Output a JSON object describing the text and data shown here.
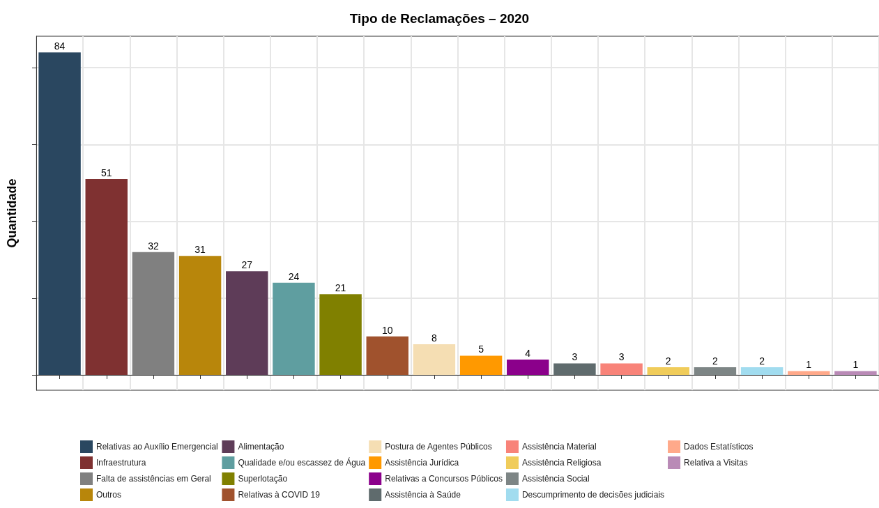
{
  "chart_data": {
    "type": "bar",
    "title": "Tipo de Reclamações – 2020",
    "ylabel": "Quantidade",
    "categories": [
      null,
      null,
      null,
      null,
      null,
      null,
      null,
      null,
      null,
      null,
      null,
      null,
      null,
      null,
      null,
      null,
      null,
      null
    ],
    "stacked": true,
    "series": [
      {
        "name": "Relativas ao Auxílio Emergencial",
        "color": "#2a4760",
        "values": [
          84,
          null,
          null,
          null,
          null,
          null,
          null,
          null,
          null,
          null,
          null,
          null,
          null,
          null,
          null,
          null,
          null,
          null
        ]
      },
      {
        "name": "Infraestrutura",
        "color": "#7f3131",
        "values": [
          null,
          51,
          null,
          null,
          null,
          null,
          null,
          null,
          null,
          null,
          null,
          null,
          null,
          null,
          null,
          null,
          null,
          null
        ]
      },
      {
        "name": "Falta de assistências em Geral",
        "color": "#808080",
        "values": [
          null,
          null,
          32,
          null,
          null,
          null,
          null,
          null,
          null,
          null,
          null,
          null,
          null,
          null,
          null,
          null,
          null,
          null
        ]
      },
      {
        "name": "Outros",
        "color": "#b8860b",
        "values": [
          null,
          null,
          null,
          31,
          null,
          null,
          null,
          null,
          null,
          null,
          null,
          null,
          null,
          null,
          null,
          null,
          null,
          null
        ]
      },
      {
        "name": "Alimentação",
        "color": "#5e3c58",
        "values": [
          null,
          null,
          null,
          null,
          27,
          null,
          null,
          null,
          null,
          null,
          null,
          null,
          null,
          null,
          null,
          null,
          null,
          null
        ]
      },
      {
        "name": "Qualidade e/ou escassez de Água",
        "color": "#5f9ea0",
        "values": [
          null,
          null,
          null,
          null,
          null,
          24,
          null,
          null,
          null,
          null,
          null,
          null,
          null,
          null,
          null,
          null,
          null,
          null
        ]
      },
      {
        "name": "Superlotação",
        "color": "#808000",
        "values": [
          null,
          null,
          null,
          null,
          null,
          null,
          21,
          null,
          null,
          null,
          null,
          null,
          null,
          null,
          null,
          null,
          null,
          null
        ]
      },
      {
        "name": "Relativas à COVID 19",
        "color": "#a0522d",
        "values": [
          null,
          null,
          null,
          null,
          null,
          null,
          null,
          10,
          null,
          null,
          null,
          null,
          null,
          null,
          null,
          null,
          null,
          null
        ]
      },
      {
        "name": "Postura de Agentes Públicos",
        "color": "#f5deb3",
        "values": [
          null,
          null,
          null,
          null,
          null,
          null,
          null,
          null,
          8,
          null,
          null,
          null,
          null,
          null,
          null,
          null,
          null,
          null
        ]
      },
      {
        "name": "Assistência Jurídica",
        "color": "#ff9900",
        "values": [
          null,
          null,
          null,
          null,
          null,
          null,
          null,
          null,
          null,
          5,
          null,
          null,
          null,
          null,
          null,
          null,
          null,
          null
        ]
      },
      {
        "name": "Relativas a Concursos Públicos",
        "color": "#8b008b",
        "values": [
          null,
          null,
          null,
          null,
          null,
          null,
          null,
          null,
          null,
          null,
          4,
          null,
          null,
          null,
          null,
          null,
          null,
          null
        ]
      },
      {
        "name": "Assistência à Saúde",
        "color": "#5f6b6d",
        "values": [
          null,
          null,
          null,
          null,
          null,
          null,
          null,
          null,
          null,
          null,
          null,
          3,
          null,
          null,
          null,
          null,
          null,
          null
        ]
      },
      {
        "name": "Assistência Material",
        "color": "#f88379",
        "values": [
          null,
          null,
          null,
          null,
          null,
          null,
          null,
          null,
          null,
          null,
          null,
          null,
          3,
          null,
          null,
          null,
          null,
          null
        ]
      },
      {
        "name": "Assistência Religiosa",
        "color": "#f0cc5a",
        "values": [
          null,
          null,
          null,
          null,
          null,
          null,
          null,
          null,
          null,
          null,
          null,
          null,
          null,
          2,
          null,
          null,
          null,
          null
        ]
      },
      {
        "name": "Assistência Social",
        "color": "#7d8585",
        "values": [
          null,
          null,
          null,
          null,
          null,
          null,
          null,
          null,
          null,
          null,
          null,
          null,
          null,
          null,
          2,
          null,
          null,
          null
        ]
      },
      {
        "name": "Descumprimento de decisões judiciais",
        "color": "#a1dcef",
        "values": [
          null,
          null,
          null,
          null,
          null,
          null,
          null,
          null,
          null,
          null,
          null,
          null,
          null,
          null,
          null,
          2,
          null,
          null
        ]
      },
      {
        "name": "Dados Estatísticos",
        "color": "#ffa98a",
        "values": [
          null,
          null,
          null,
          null,
          null,
          null,
          null,
          null,
          null,
          null,
          null,
          null,
          null,
          null,
          null,
          null,
          1,
          null
        ]
      },
      {
        "name": "Relativa a Visitas",
        "color": "#b98ab6",
        "values": [
          null,
          null,
          null,
          null,
          null,
          null,
          null,
          null,
          null,
          null,
          null,
          null,
          null,
          null,
          null,
          null,
          null,
          1
        ]
      }
    ],
    "ylim": [
      -4,
      88.2
    ],
    "yticks": [
      {
        "value": 0,
        "label": null
      },
      {
        "value": 20,
        "label": null
      },
      {
        "value": 40,
        "label": null
      },
      {
        "value": 60,
        "label": null
      },
      {
        "value": 80,
        "label": null
      }
    ],
    "data_labels": true,
    "grid": true,
    "legend": "bottom"
  }
}
